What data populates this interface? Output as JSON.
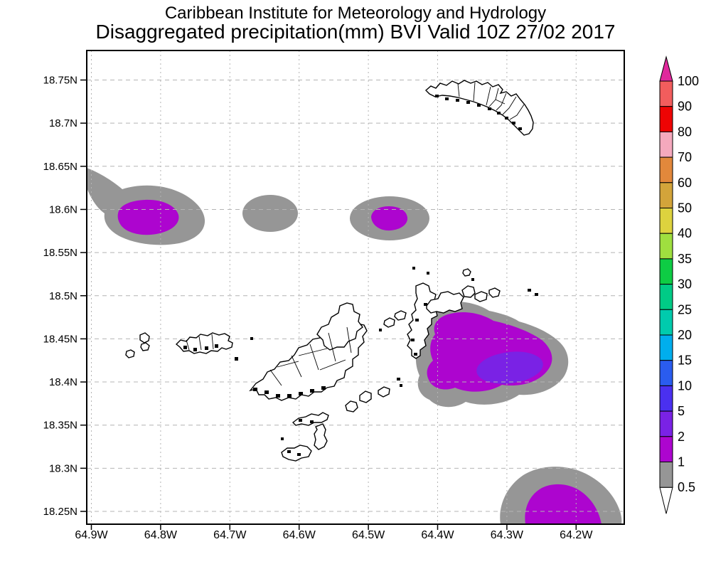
{
  "title": {
    "line1": "Caribbean Institute for Meteorology and Hydrology",
    "line2": "Disaggregated precipitation(mm) BVI Valid 10Z 27/02 2017"
  },
  "colors": {
    "gray_low_bin": "#969696",
    "purple_1_2": "#AD05CF",
    "violet_2_5": "#7A22E5",
    "grid": "#b4b4b4",
    "land_fill": "#ffffff",
    "coast": "#000000"
  },
  "chart_data": {
    "type": "heatmap",
    "subtype": "filled-contour precipitation map",
    "title": "Caribbean Institute for Meteorology and Hydrology — Disaggregated precipitation(mm) BVI Valid 10Z 27/02 2017",
    "region": "BVI (British Virgin Islands)",
    "units": "mm",
    "valid_time": "10Z 27/02 2017",
    "grid": true,
    "x_ticks": [
      "64.9W",
      "64.8W",
      "64.7W",
      "64.6W",
      "64.5W",
      "64.4W",
      "64.3W",
      "64.2W"
    ],
    "y_ticks": [
      "18.75N",
      "18.7N",
      "18.65N",
      "18.6N",
      "18.55N",
      "18.5N",
      "18.45N",
      "18.4N",
      "18.35N",
      "18.3N",
      "18.25N"
    ],
    "xlim": [
      "64.91W",
      "64.13W"
    ],
    "ylim": [
      "18.23N",
      "18.79N"
    ],
    "colorbar": {
      "position": "right",
      "levels_low_to_high": [
        "0.5",
        "1",
        "2",
        "5",
        "10",
        "15",
        "20",
        "25",
        "30",
        "35",
        "40",
        "50",
        "60",
        "70",
        "80",
        "90",
        "100"
      ],
      "cell_colors_low_to_high": [
        "#969696",
        "#AD05CF",
        "#7A22E5",
        "#4A30F0",
        "#2A5CEF",
        "#00AEED",
        "#00CBAD",
        "#00CB86",
        "#0ECC44",
        "#9FDF3F",
        "#DDD23E",
        "#D3A43A",
        "#E2883B",
        "#F5A9BD",
        "#EE0404",
        "#F25D5D"
      ],
      "over_arrow_color": "#E0289C",
      "under_arrow_color": "#FFFFFF"
    },
    "precip_regions": [
      {
        "name": "west cell",
        "center_lon": "64.81W",
        "center_lat": "18.59N",
        "max_bin_mm": "1-2"
      },
      {
        "name": "north-central cell",
        "center_lon": "64.66W",
        "center_lat": "18.60N",
        "max_bin_mm": "0.5-1"
      },
      {
        "name": "north cell near 64.5W",
        "center_lon": "64.50W",
        "center_lat": "18.59N",
        "max_bin_mm": "1-2"
      },
      {
        "name": "large east cell",
        "center_lon": "64.31W",
        "center_lat": "18.43N",
        "max_bin_mm": "2-5"
      },
      {
        "name": "southeast corner cell (cut by frame)",
        "center_lon": "64.21W",
        "center_lat": "18.25N",
        "max_bin_mm": "1-2"
      }
    ]
  }
}
